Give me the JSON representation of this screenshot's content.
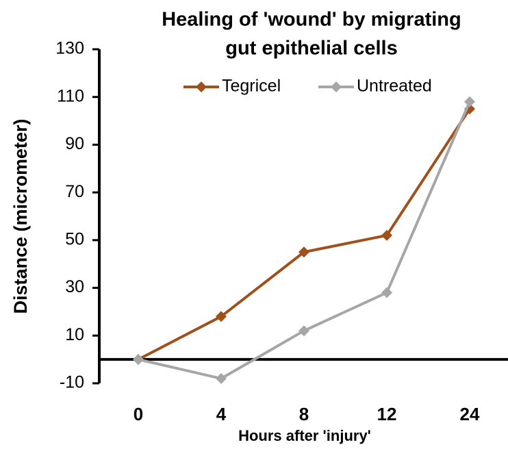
{
  "chart_data": {
    "type": "line",
    "title": [
      "Healing of 'wound' by migrating",
      "gut epithelial cells"
    ],
    "x_label": "Hours after 'injury'",
    "y_label": "Distance (micrometer)",
    "categories": [
      "0",
      "4",
      "8",
      "12",
      "24"
    ],
    "series": [
      {
        "name": "Tegricel",
        "color": "#a0501a",
        "values": [
          0,
          18,
          45,
          52,
          105
        ]
      },
      {
        "name": "Untreated",
        "color": "#a6a6a6",
        "values": [
          0,
          -8,
          12,
          28,
          108
        ]
      }
    ],
    "ylim": [
      -10,
      130
    ],
    "yticks": [
      -10,
      10,
      30,
      50,
      70,
      90,
      110,
      130
    ],
    "legend": "top"
  }
}
